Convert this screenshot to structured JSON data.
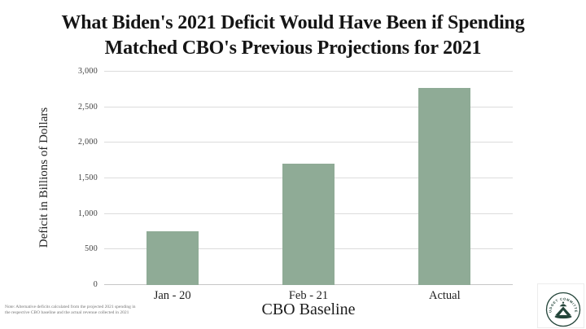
{
  "title": {
    "line1": "What Biden's 2021 Deficit Would Have Been if Spending",
    "line2": "Matched CBO's Previous Projections for 2021"
  },
  "chart_data": {
    "type": "bar",
    "title": "What Biden's 2021 Deficit Would Have Been if Spending Matched CBO's Previous Projections for 2021",
    "categories": [
      "Jan - 20",
      "Feb - 21",
      "Actual"
    ],
    "values": [
      760,
      1710,
      2772
    ],
    "xlabel": "CBO Baseline",
    "ylabel": "Deficit in Billions of Dollars",
    "ylim": [
      0,
      3000
    ],
    "grid": true,
    "legend": "none",
    "bar_color": "#8fab96",
    "yticks": [
      {
        "value": 0,
        "label": "0"
      },
      {
        "value": 500,
        "label": "500"
      },
      {
        "value": 1000,
        "label": "1,000"
      },
      {
        "value": 1500,
        "label": "1,500"
      },
      {
        "value": 2000,
        "label": "2,000"
      },
      {
        "value": 2500,
        "label": "2,500"
      },
      {
        "value": 3000,
        "label": "3,000"
      }
    ]
  },
  "note": {
    "line1": "Note: Alternative deficits calculated from the projected 2021 spending in",
    "line2": "the respective CBO baseline and the actual revenue collected in 2021"
  },
  "logo": {
    "arc_text": "BUDGET COMMITTEE",
    "color": "#24453a"
  },
  "colors": {
    "background": "#ffffff",
    "bar": "#8fab96",
    "gridline": "#dcdcdc",
    "axis_line": "#c6c6c6",
    "title_text": "#151515"
  }
}
